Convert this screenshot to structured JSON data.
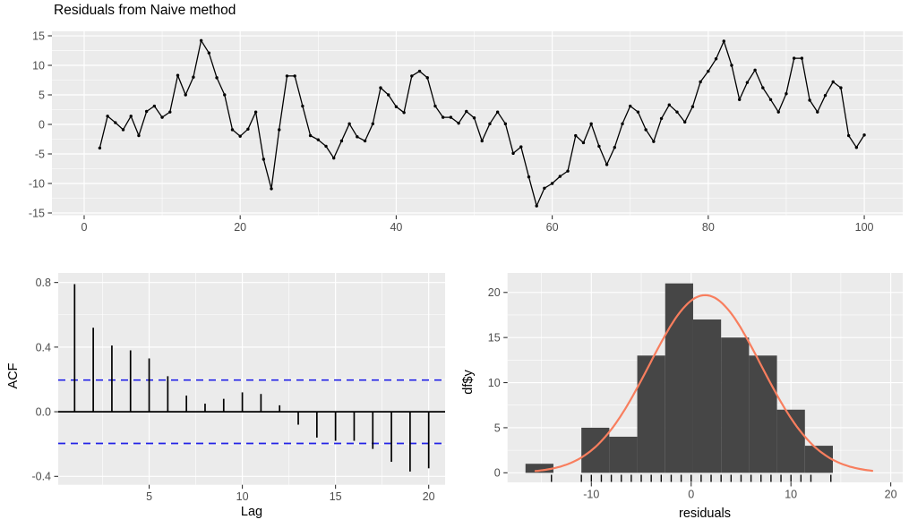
{
  "title": "Residuals from Naive method",
  "colors": {
    "panel_background": "#EBEBEB",
    "grid": "#FFFFFF",
    "tick_mark": "#333333",
    "tick_text": "#4D4D4D",
    "series": "#000000",
    "acf_confidence": "#2222E6",
    "hist_bar": "#464646",
    "normal_curve": "#F87E5E"
  },
  "chart_data": [
    {
      "name": "residual-time-series",
      "type": "line",
      "title": "Residuals from Naive method",
      "xlabel": "",
      "ylabel": "",
      "x_first": 2,
      "x_step": 1,
      "values": [
        -4.0,
        1.4,
        0.3,
        -0.9,
        1.4,
        -1.9,
        2.2,
        3.1,
        1.2,
        2.1,
        8.3,
        5.0,
        8.0,
        14.2,
        12.1,
        7.9,
        5.0,
        -0.9,
        -2.0,
        -0.8,
        2.1,
        -5.9,
        -10.9,
        -0.9,
        8.2,
        8.2,
        3.1,
        -1.9,
        -2.6,
        -3.7,
        -5.7,
        -2.8,
        0.1,
        -2.1,
        -2.8,
        0.1,
        6.2,
        5.0,
        3.0,
        2.0,
        8.2,
        9.0,
        7.9,
        3.1,
        1.2,
        1.2,
        0.2,
        2.2,
        1.1,
        -2.8,
        0.1,
        2.1,
        0.1,
        -4.9,
        -3.8,
        -8.9,
        -13.8,
        -10.8,
        -10.0,
        -8.8,
        -7.9,
        -1.9,
        -3.1,
        0.1,
        -3.7,
        -6.8,
        -3.9,
        0.1,
        3.1,
        2.1,
        -0.9,
        -2.9,
        1.0,
        3.3,
        2.1,
        0.4,
        3.0,
        7.2,
        9.0,
        11.1,
        14.1,
        10.0,
        4.2,
        7.1,
        9.2,
        6.2,
        4.2,
        2.1,
        5.2,
        11.2,
        11.2,
        4.1,
        2.1,
        4.9,
        7.2,
        6.2,
        -1.9,
        -3.9,
        -1.8
      ],
      "xticks": [
        "0",
        "20",
        "40",
        "60",
        "80",
        "100"
      ],
      "yticks": [
        "15",
        "10",
        "5",
        "0",
        "-5",
        "-10",
        "-15"
      ],
      "x_minor": [
        10,
        30,
        50,
        70,
        90
      ],
      "y_minor": [
        12.5,
        7.5,
        2.5,
        -2.5,
        -7.5,
        -12.5
      ],
      "xlim": [
        -4.13,
        104.93
      ],
      "ylim": [
        -15.38,
        15.76
      ],
      "grid": true,
      "point_markers": true
    },
    {
      "name": "acf",
      "type": "bar",
      "title": "",
      "xlabel": "Lag",
      "ylabel": "ACF",
      "lags": [
        1,
        2,
        3,
        4,
        5,
        6,
        7,
        8,
        9,
        10,
        11,
        12,
        13,
        14,
        15,
        16,
        17,
        18,
        19,
        20
      ],
      "values": [
        0.79,
        0.52,
        0.41,
        0.38,
        0.33,
        0.22,
        0.1,
        0.05,
        0.08,
        0.12,
        0.11,
        0.04,
        -0.08,
        -0.16,
        -0.18,
        -0.18,
        -0.23,
        -0.31,
        -0.37,
        -0.35
      ],
      "confidence_bound": 0.196,
      "xticks": [
        "5",
        "10",
        "15",
        "20"
      ],
      "yticks": [
        "0.8",
        "0.4",
        "0.0",
        "-0.4"
      ],
      "x_minor": [
        2.5,
        7.5,
        12.5,
        17.5
      ],
      "y_minor": [
        0.6,
        0.2,
        -0.2
      ],
      "xlim": [
        0.12,
        20.88
      ],
      "ylim": [
        -0.452,
        0.859
      ],
      "grid": true
    },
    {
      "name": "residual-histogram",
      "type": "histogram",
      "title": "",
      "xlabel": "residuals",
      "ylabel": "df$y",
      "bin_start": -16.6,
      "bin_width": 2.8,
      "counts": [
        1,
        0,
        5,
        4,
        13,
        21,
        17,
        15,
        13,
        7,
        3
      ],
      "curve": {
        "mean": 1.4,
        "sd": 5.6,
        "peak": 19.7,
        "from": -15.6,
        "to": 18.3
      },
      "rug": [
        -14,
        -11,
        -10,
        -9,
        -8,
        -7,
        -6,
        -5,
        -4,
        -3,
        -2,
        -1,
        0,
        1,
        2,
        3,
        4,
        5,
        6,
        7,
        8,
        9,
        10,
        11,
        12,
        14
      ],
      "xticks": [
        "-10",
        "0",
        "10",
        "20"
      ],
      "yticks": [
        "0",
        "5",
        "10",
        "15",
        "20"
      ],
      "x_minor": [
        -15,
        -5,
        5,
        15
      ],
      "y_minor": [
        2.5,
        7.5,
        12.5,
        17.5
      ],
      "xlim": [
        -18.4,
        21.2
      ],
      "ylim": [
        -1.06,
        22.16
      ],
      "grid": true
    }
  ]
}
